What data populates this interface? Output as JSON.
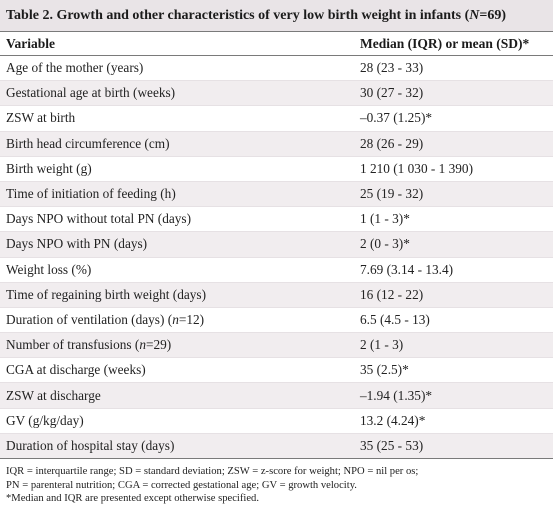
{
  "caption": {
    "prefix": "Table 2. Growth and other characteristics of very low birth weight in infants (",
    "n_symbol": "N",
    "n_value": "=69)"
  },
  "headers": {
    "variable": "Variable",
    "value": "Median (IQR) or mean (SD)*"
  },
  "rows": [
    {
      "label": "Age of the mother (years)",
      "n_note": "",
      "value": "28 (23 - 33)"
    },
    {
      "label": "Gestational age at birth (weeks)",
      "n_note": "",
      "value": "30 (27 - 32)"
    },
    {
      "label": "ZSW at birth",
      "n_note": "",
      "value": "–0.37 (1.25)*"
    },
    {
      "label": "Birth head circumference (cm)",
      "n_note": "",
      "value": "28 (26 - 29)"
    },
    {
      "label": "Birth weight (g)",
      "n_note": "",
      "value": "1 210 (1 030 - 1 390)"
    },
    {
      "label": "Time of initiation of feeding (h)",
      "n_note": "",
      "value": "25 (19 - 32)"
    },
    {
      "label": "Days NPO without total PN (days)",
      "n_note": "",
      "value": "1 (1 - 3)*"
    },
    {
      "label": "Days NPO with PN (days)",
      "n_note": "",
      "value": "2 (0 - 3)*"
    },
    {
      "label": "Weight loss (%)",
      "n_note": "",
      "value": "7.69 (3.14 - 13.4)"
    },
    {
      "label": "Time of regaining birth weight (days)",
      "n_note": "",
      "value": "16  (12 - 22)"
    },
    {
      "label": "Duration of ventilation (days) ",
      "n_note": "(n=12)",
      "value": "6.5 (4.5 - 13)"
    },
    {
      "label": "Number of transfusions ",
      "n_note": "(n=29)",
      "value": "2 (1 - 3)"
    },
    {
      "label": "CGA at discharge (weeks)",
      "n_note": "",
      "value": "35 (2.5)*"
    },
    {
      "label": "ZSW at discharge",
      "n_note": "",
      "value": "–1.94 (1.35)*"
    },
    {
      "label": "GV (g/kg/day)",
      "n_note": "",
      "value": "13.2 (4.24)*"
    },
    {
      "label": "Duration of hospital stay (days)",
      "n_note": "",
      "value": "35 (25 - 53)"
    }
  ],
  "footnotes": {
    "line1": "IQR = interquartile range; SD = standard deviation; ZSW = z-score for weight; NPO = nil per os;",
    "line2": "PN = parenteral nutrition; CGA = corrected gestational age; GV = growth velocity.",
    "line3": "*Median and IQR are presented except otherwise specified."
  }
}
